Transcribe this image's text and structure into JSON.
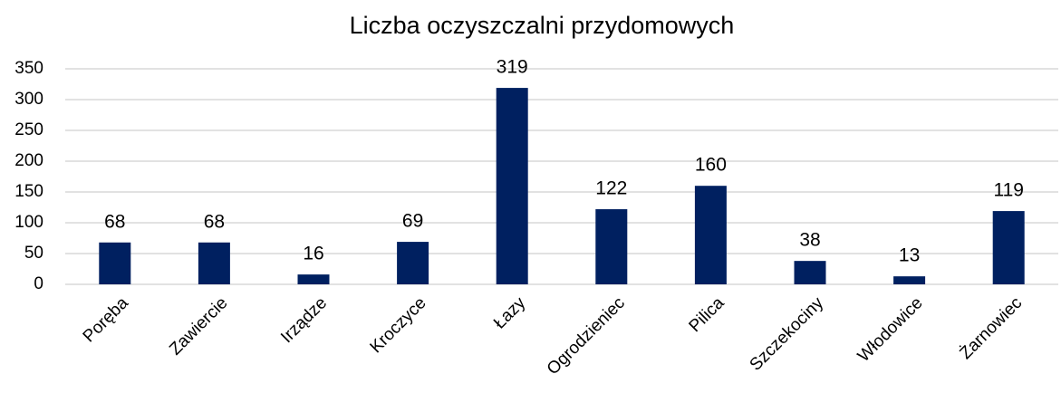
{
  "chart_data": {
    "type": "bar",
    "title": "Liczba oczyszczalni przydomowych",
    "categories": [
      "Poręba",
      "Zawiercie",
      "Irządze",
      "Kroczyce",
      "Łazy",
      "Ogrodzieniec",
      "Pilica",
      "Szczekociny",
      "Włodowice",
      "Żarnowiec"
    ],
    "values": [
      68,
      68,
      16,
      69,
      319,
      122,
      160,
      38,
      13,
      119
    ],
    "color": "#002060",
    "ylim": [
      0,
      350
    ],
    "yticks": [
      0,
      50,
      100,
      150,
      200,
      250,
      300,
      350
    ],
    "grid": true
  }
}
